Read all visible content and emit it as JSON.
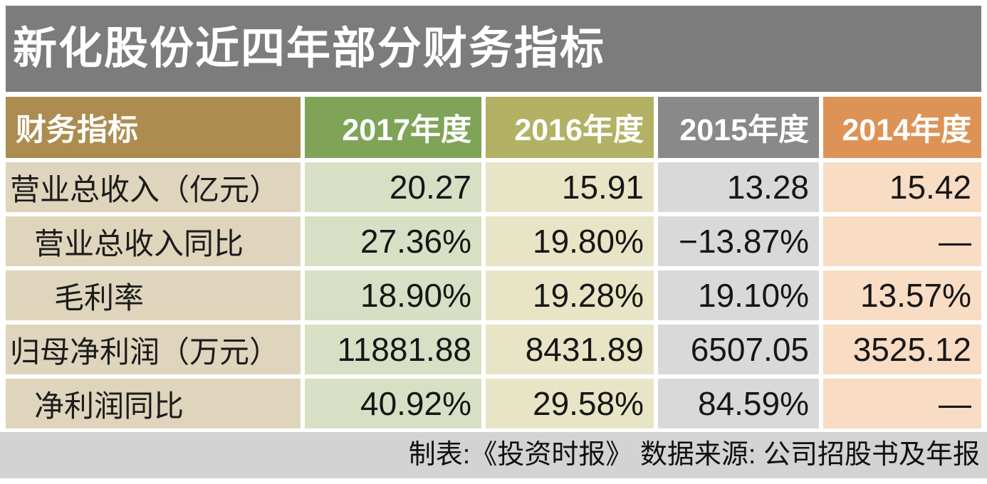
{
  "title": "新化股份近四年部分财务指标",
  "footer": "制表:《投资时报》  数据来源: 公司招股书及年报",
  "table": {
    "header": [
      "财务指标",
      "2017年度",
      "2016年度",
      "2015年度",
      "2014年度"
    ],
    "rows": [
      {
        "label": "营业总收入（亿元）",
        "values": [
          "20.27",
          "15.91",
          "13.28",
          "15.42"
        ]
      },
      {
        "label": "营业总收入同比",
        "values": [
          "27.36%",
          "19.80%",
          "−13.87%",
          "—"
        ]
      },
      {
        "label": "毛利率",
        "values": [
          "18.90%",
          "19.28%",
          "19.10%",
          "13.57%"
        ]
      },
      {
        "label": "归母净利润（万元）",
        "values": [
          "11881.88",
          "8431.89",
          "6507.05",
          "3525.12"
        ]
      },
      {
        "label": "净利润同比",
        "values": [
          "40.92%",
          "29.58%",
          "84.59%",
          "—"
        ]
      }
    ]
  },
  "colors": {
    "title_bg": "#7c7c7c",
    "h_label": "#ac8c4f",
    "h_2017": "#7fa457",
    "h_2016": "#b2b164",
    "h_2015": "#898989",
    "h_2014": "#dd9356",
    "c_label": "#dfd5bc",
    "c_2017": "#d7e0c4",
    "c_2016": "#e7e5c5",
    "c_2015": "#d9d9d9",
    "c_2014": "#f8dcc3",
    "footer_bg": "#d3d3d3"
  },
  "chart_data": {
    "type": "table",
    "title": "新化股份近四年部分财务指标",
    "columns": [
      "财务指标",
      "2017年度",
      "2016年度",
      "2015年度",
      "2014年度"
    ],
    "rows": [
      [
        "营业总收入（亿元）",
        "20.27",
        "15.91",
        "13.28",
        "15.42"
      ],
      [
        "营业总收入同比",
        "27.36%",
        "19.80%",
        "−13.87%",
        "—"
      ],
      [
        "毛利率",
        "18.90%",
        "19.28%",
        "19.10%",
        "13.57%"
      ],
      [
        "归母净利润（万元）",
        "11881.88",
        "8431.89",
        "6507.05",
        "3525.12"
      ],
      [
        "净利润同比",
        "40.92%",
        "29.58%",
        "84.59%",
        "—"
      ]
    ],
    "source_note": "制表:《投资时报》  数据来源: 公司招股书及年报"
  }
}
